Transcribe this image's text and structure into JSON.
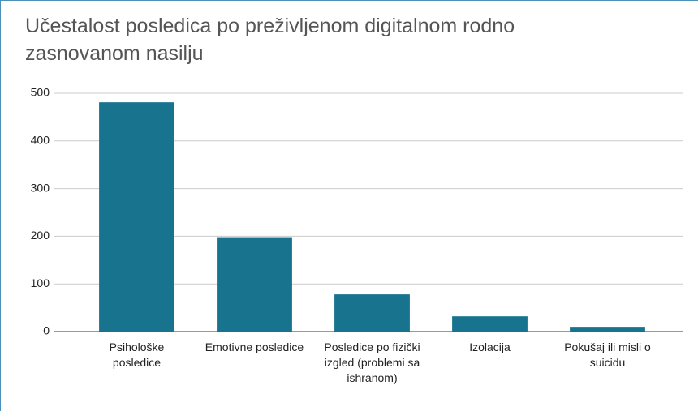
{
  "chart_data": {
    "type": "bar",
    "title": "Učestalost posledica po preživljenom digitalnom rodno zasnovanom nasilju",
    "categories": [
      "Psihološke posledice",
      "Emotivne posledice",
      "Posledice po fizički izgled (problemi sa ishranom)",
      "Izolacija",
      "Pokušaj ili misli o suicidu"
    ],
    "values": [
      481,
      198,
      78,
      32,
      10
    ],
    "color": "#18738f",
    "ylim": [
      0,
      500
    ],
    "yticks": [
      0,
      100,
      200,
      300,
      400,
      500
    ],
    "grid": true
  }
}
